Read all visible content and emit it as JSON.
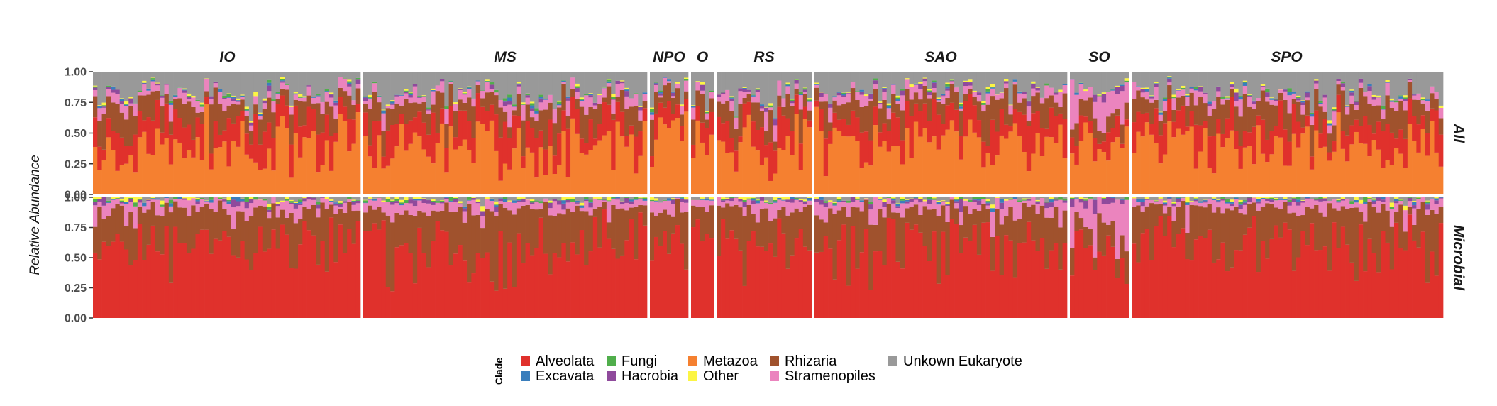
{
  "chart_data": {
    "type": "bar",
    "stacked": true,
    "normalized": true,
    "ylabel": "Relative Abundance",
    "ylim": [
      0,
      1
    ],
    "yticks": [
      "0.00",
      "0.25",
      "0.50",
      "0.75",
      "1.00"
    ],
    "grid": false,
    "legend_position": "bottom",
    "legend_title": "Clade",
    "columns": [
      {
        "label": "IO",
        "bars": 60
      },
      {
        "label": "MS",
        "bars": 63
      },
      {
        "label": "NPO",
        "bars": 9
      },
      {
        "label": "O",
        "bars": 5
      },
      {
        "label": "RS",
        "bars": 22
      },
      {
        "label": "SAO",
        "bars": 56
      },
      {
        "label": "SO",
        "bars": 13
      },
      {
        "label": "SPO",
        "bars": 70
      }
    ],
    "rows": [
      {
        "label": "All",
        "mean_composition": {
          "Alveolata": 0.18,
          "Excavata": 0.01,
          "Fungi": 0.01,
          "Hacrobia": 0.02,
          "Metazoa": 0.4,
          "Other": 0.01,
          "Rhizaria": 0.15,
          "Stramenopiles": 0.06,
          "Unkown Eukaryote": 0.16
        }
      },
      {
        "label": "Microbial",
        "mean_composition": {
          "Alveolata": 0.6,
          "Excavata": 0.01,
          "Fungi": 0.01,
          "Hacrobia": 0.02,
          "Metazoa": 0.0,
          "Other": 0.01,
          "Rhizaria": 0.27,
          "Stramenopiles": 0.06,
          "Unkown Eukaryote": 0.02
        }
      }
    ],
    "series": [
      {
        "name": "Alveolata",
        "color": "#e0312c"
      },
      {
        "name": "Excavata",
        "color": "#3a7ebc"
      },
      {
        "name": "Fungi",
        "color": "#50ae4b"
      },
      {
        "name": "Hacrobia",
        "color": "#8f4a9c"
      },
      {
        "name": "Metazoa",
        "color": "#f58030"
      },
      {
        "name": "Other",
        "color": "#fcf544"
      },
      {
        "name": "Rhizaria",
        "color": "#a0522d"
      },
      {
        "name": "Stramenopiles",
        "color": "#eb84be"
      },
      {
        "name": "Unkown Eukaryote",
        "color": "#999999"
      }
    ]
  }
}
